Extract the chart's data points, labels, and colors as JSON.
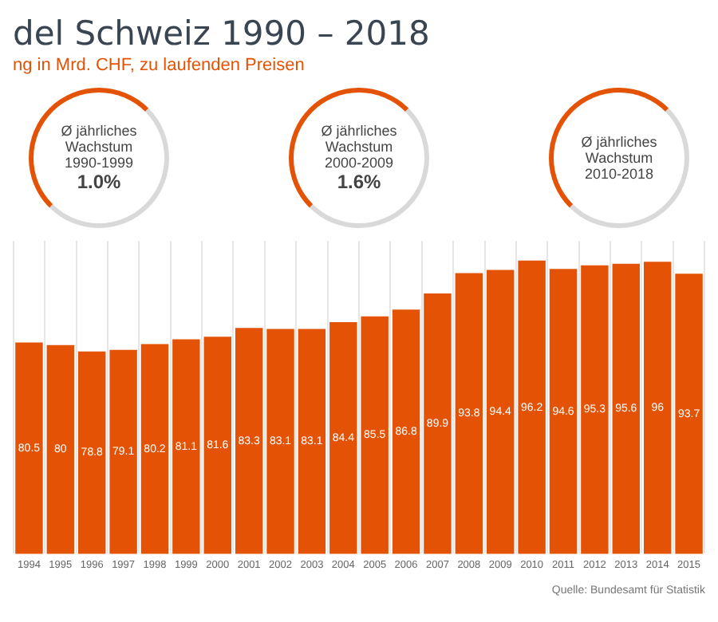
{
  "chart_data": {
    "type": "bar",
    "title": "del Schweiz 1990 – 2018",
    "subtitle": "ng in Mrd. CHF, zu laufenden Preisen",
    "categories": [
      "1994",
      "1995",
      "1996",
      "1997",
      "1998",
      "1999",
      "2000",
      "2001",
      "2002",
      "2003",
      "2004",
      "2005",
      "2006",
      "2007",
      "2008",
      "2009",
      "2010",
      "2011",
      "2012",
      "2013",
      "2014",
      "2015"
    ],
    "values": [
      80.5,
      80,
      78.8,
      79.1,
      80.2,
      81.1,
      81.6,
      83.3,
      83.1,
      83.1,
      84.4,
      85.5,
      86.8,
      89.9,
      93.8,
      94.4,
      96.2,
      94.6,
      95.3,
      95.6,
      96,
      93.7
    ],
    "color": "#e35205",
    "ylim": [
      40,
      100
    ],
    "data_labels": true,
    "grid": "x",
    "tick_labels": "x",
    "annotations": [
      "Ø jährliches Wachstum 1990-1999 1.0%",
      "Ø jährliches Wachstum 2000-2009 1.6%",
      "Ø jährliches Wachstum 2010-2018",
      "Quelle: Bundesamt für Statistik"
    ]
  }
}
